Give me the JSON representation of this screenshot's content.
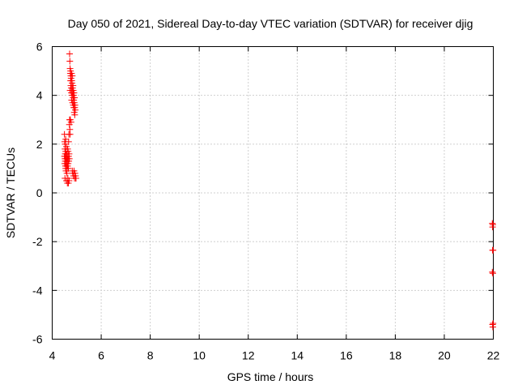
{
  "chart_data": {
    "type": "scatter",
    "title": "Day 050 of 2021, Sidereal Day-to-day VTEC variation (SDTVAR) for receiver djig",
    "xlabel": "GPS time / hours",
    "ylabel": "SDTVAR / TECUs",
    "xlim": [
      4,
      22
    ],
    "ylim": [
      -6,
      6
    ],
    "xticks": [
      4,
      6,
      8,
      10,
      12,
      14,
      16,
      18,
      20,
      22
    ],
    "yticks": [
      -6,
      -4,
      -2,
      0,
      2,
      4,
      6
    ],
    "grid": true,
    "marker": "+",
    "color": "#ff0000",
    "series": [
      {
        "name": "SDTVAR",
        "x": [
          4.5,
          4.5,
          4.51,
          4.51,
          4.52,
          4.52,
          4.52,
          4.53,
          4.53,
          4.53,
          4.54,
          4.54,
          4.55,
          4.55,
          4.55,
          4.56,
          4.56,
          4.57,
          4.57,
          4.58,
          4.58,
          4.58,
          4.59,
          4.59,
          4.6,
          4.6,
          4.6,
          4.61,
          4.61,
          4.62,
          4.62,
          4.63,
          4.63,
          4.64,
          4.64,
          4.65,
          4.65,
          4.66,
          4.66,
          4.67,
          4.67,
          4.68,
          4.68,
          4.69,
          4.69,
          4.7,
          4.7,
          4.71,
          4.71,
          4.72,
          4.72,
          4.73,
          4.73,
          4.73,
          4.74,
          4.74,
          4.75,
          4.75,
          4.76,
          4.76,
          4.77,
          4.77,
          4.78,
          4.78,
          4.79,
          4.79,
          4.8,
          4.8,
          4.81,
          4.81,
          4.82,
          4.82,
          4.83,
          4.83,
          4.84,
          4.84,
          4.85,
          4.85,
          4.86,
          4.86,
          4.87,
          4.87,
          4.88,
          4.88,
          4.89,
          4.89,
          4.9,
          4.9,
          4.91,
          4.91,
          4.92,
          4.92,
          4.93,
          4.93,
          4.94,
          4.95,
          4.96,
          4.97,
          21.96,
          21.96,
          21.97,
          21.97,
          21.97,
          21.98,
          21.98,
          21.98,
          21.99,
          21.99
        ],
        "y": [
          1.5,
          2.4,
          1.2,
          2.1,
          1.4,
          1.8,
          0.6,
          1.3,
          1.6,
          2.0,
          1.1,
          1.5,
          1.0,
          1.7,
          2.2,
          1.4,
          0.9,
          1.2,
          1.6,
          1.3,
          0.5,
          1.9,
          1.1,
          1.4,
          0.8,
          1.2,
          1.6,
          1.0,
          1.3,
          0.4,
          1.5,
          1.1,
          1.8,
          0.6,
          1.4,
          1.2,
          1.7,
          0.4,
          1.0,
          1.5,
          2.1,
          1.3,
          2.4,
          1.6,
          0.5,
          2.8,
          1.4,
          3.0,
          5.7,
          2.6,
          5.4,
          5.1,
          4.2,
          2.4,
          4.9,
          3.0,
          4.6,
          5.0,
          4.4,
          4.8,
          2.9,
          4.7,
          4.3,
          4.1,
          4.9,
          3.8,
          4.6,
          4.2,
          4.0,
          4.5,
          4.8,
          0.9,
          4.3,
          3.7,
          4.1,
          0.8,
          4.4,
          3.9,
          3.6,
          4.2,
          0.7,
          4.0,
          3.5,
          3.8,
          0.9,
          4.1,
          3.3,
          3.7,
          0.6,
          3.9,
          3.5,
          3.2,
          0.8,
          3.6,
          3.4,
          0.7,
          0.6,
          0.6,
          -1.25,
          -3.25,
          -1.4,
          -2.35,
          -5.4,
          -3.3,
          -1.3,
          -5.5,
          -2.35,
          -5.35
        ]
      }
    ]
  }
}
